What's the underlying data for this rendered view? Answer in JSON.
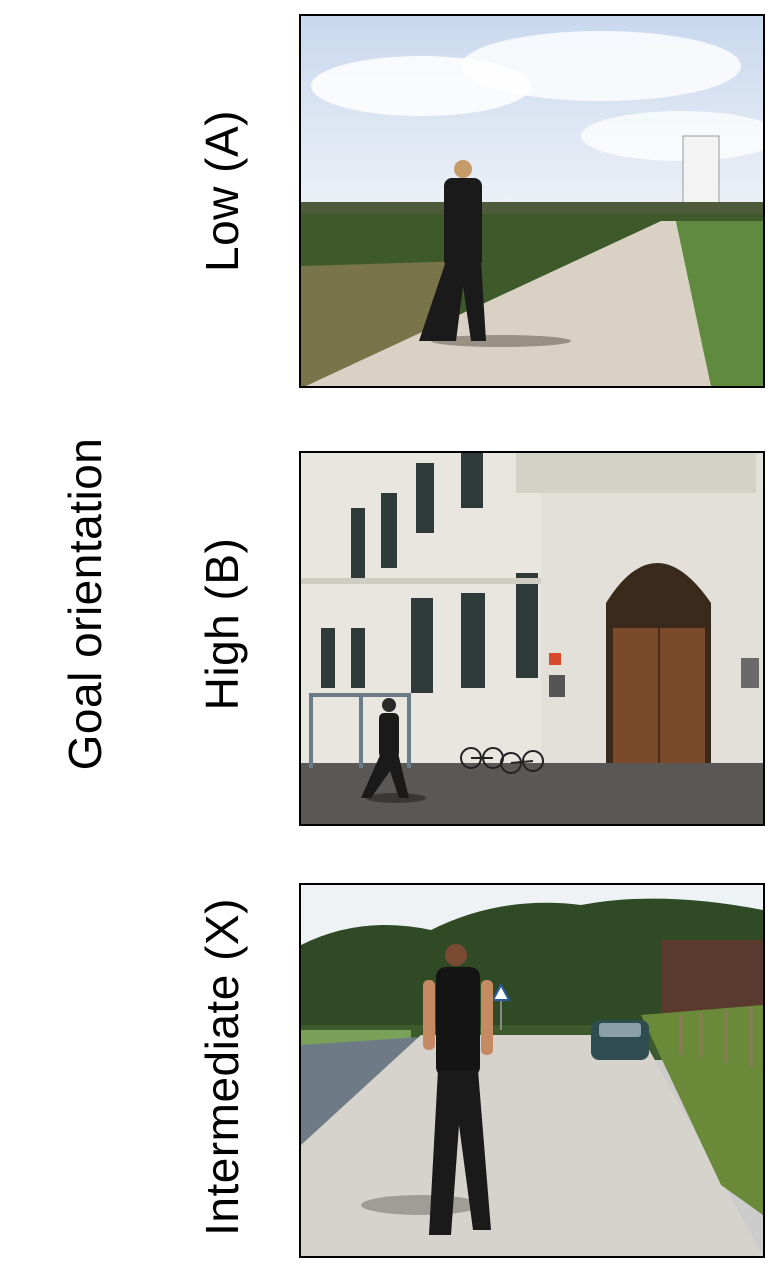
{
  "figure": {
    "axis_title": "Goal orientation",
    "panels": [
      {
        "label": "Low (A)",
        "scene": "field-path-photo"
      },
      {
        "label": "High (B)",
        "scene": "building-entrance-photo"
      },
      {
        "label": "Intermediate (X)",
        "scene": "country-road-photo"
      }
    ]
  },
  "colors": {
    "sky": "#dfe7f2",
    "field": "#3f5a2a",
    "path": "#d9d2c4",
    "building": "#e8e6df",
    "door": "#7a4a2a",
    "figure": "#1a1a1a"
  }
}
